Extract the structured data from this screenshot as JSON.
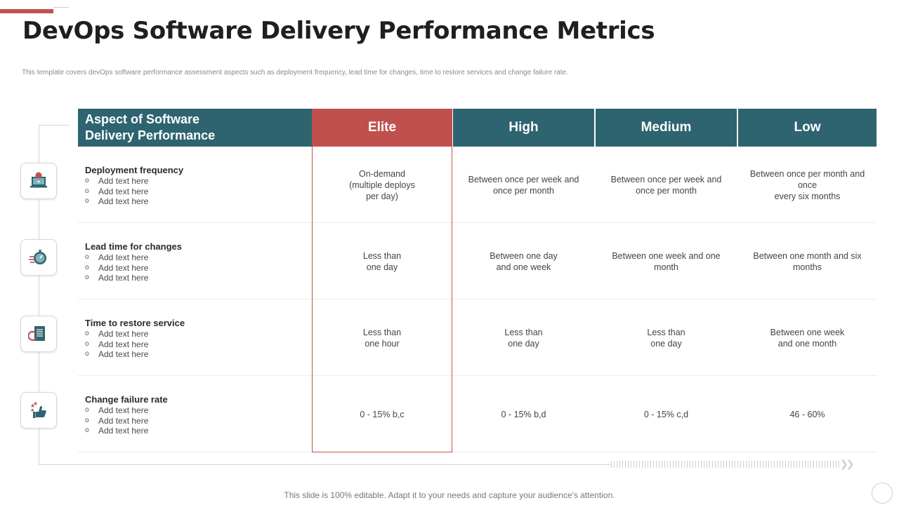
{
  "slide": {
    "title": "DevOps Software Delivery Performance Metrics",
    "subtitle": "This template  covers devOps software performance assessment aspects such as deployment frequency, lead time  for changes, time to restore services and change failure rate.",
    "footer": "This slide is 100% editable. Adapt it to your needs and capture your audience's attention."
  },
  "table": {
    "header": {
      "aspect_line1": "Aspect of Software",
      "aspect_line2": "Delivery Performance",
      "elite": "Elite",
      "high": "High",
      "medium": "Medium",
      "low": "Low"
    },
    "rows": [
      {
        "icon": "laptop-icon",
        "aspect": "Deployment frequency",
        "bullets": [
          "Add text here",
          "Add text here",
          "Add text here"
        ],
        "elite": "On-demand\n(multiple deploys\nper day)",
        "high": "Between once per week and\nonce per month",
        "medium": "Between once per week and\nonce per month",
        "low": "Between once per month and\nonce\nevery  six months"
      },
      {
        "icon": "stopwatch-icon",
        "aspect": "Lead time for changes",
        "bullets": [
          "Add text here",
          "Add text here",
          "Add text here"
        ],
        "elite": "Less than\none day",
        "high": "Between one day\nand one week",
        "medium": "Between one week and one\nmonth",
        "low": "Between one month and six\nmonths"
      },
      {
        "icon": "restore-document-icon",
        "aspect": "Time to restore service",
        "bullets": [
          "Add text here",
          "Add text here",
          "Add text here"
        ],
        "elite": "Less than\none hour",
        "high": "Less than\none day",
        "medium": "Less than\none day",
        "low": "Between one week\nand one month"
      },
      {
        "icon": "thumbs-up-rating-icon",
        "aspect": "Change failure rate",
        "bullets": [
          "Add text here",
          "Add text here",
          "Add text here"
        ],
        "elite": "0 - 15% b,c",
        "high": "0 - 15% b,d",
        "medium": "0 - 15% c,d",
        "low": "46 - 60%"
      }
    ]
  },
  "colors": {
    "header_teal": "#2e6470",
    "elite_red": "#c0504d",
    "accent": "#c0504d"
  }
}
